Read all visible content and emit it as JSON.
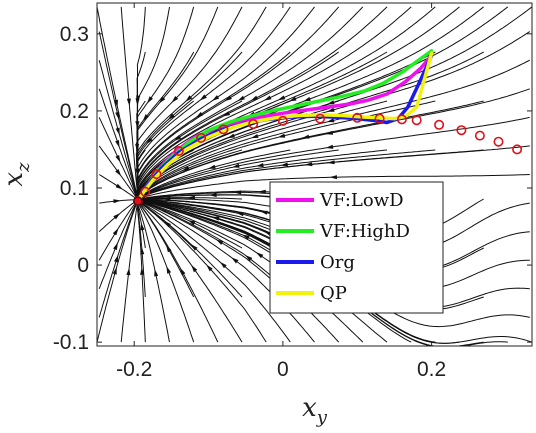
{
  "chart_data": {
    "type": "line",
    "subtype": "phase-portrait-with-trajectories",
    "xlabel": {
      "base": "x",
      "sub": "y"
    },
    "ylabel": {
      "base": "x",
      "sub": "z"
    },
    "xlim": [
      -0.25,
      0.335
    ],
    "ylim": [
      -0.105,
      0.34
    ],
    "xticks": [
      {
        "value": -0.2,
        "label": "-0.2"
      },
      {
        "value": 0,
        "label": "0"
      },
      {
        "value": 0.2,
        "label": "0.2"
      }
    ],
    "yticks": [
      {
        "value": -0.1,
        "label": "-0.1"
      },
      {
        "value": 0,
        "label": "0"
      },
      {
        "value": 0.1,
        "label": "0.1"
      },
      {
        "value": 0.2,
        "label": "0.2"
      },
      {
        "value": 0.3,
        "label": "0.3"
      }
    ],
    "legend_position": "lower-right",
    "grid": false,
    "attractor": {
      "x": -0.195,
      "y": 0.083
    },
    "reference_markers": {
      "color": "#e0101a",
      "x": [
        -0.195,
        -0.185,
        -0.17,
        -0.14,
        -0.11,
        -0.08,
        -0.04,
        0.0,
        0.05,
        0.1,
        0.13,
        0.16,
        0.18,
        0.21,
        0.24,
        0.265,
        0.29,
        0.315
      ],
      "y": [
        0.083,
        0.095,
        0.118,
        0.148,
        0.165,
        0.176,
        0.183,
        0.187,
        0.19,
        0.191,
        0.19,
        0.189,
        0.188,
        0.182,
        0.175,
        0.168,
        0.16,
        0.15
      ]
    },
    "series": [
      {
        "name": "VF:LowD",
        "color": "#ee10ee",
        "x": [
          0.2,
          0.185,
          0.165,
          0.14,
          0.115,
          0.09,
          0.06,
          0.03,
          0.0,
          -0.03,
          -0.06,
          -0.09,
          -0.12,
          -0.145,
          -0.165,
          -0.18,
          -0.19,
          -0.195
        ],
        "y": [
          0.272,
          0.255,
          0.238,
          0.222,
          0.214,
          0.209,
          0.205,
          0.201,
          0.197,
          0.192,
          0.186,
          0.178,
          0.165,
          0.147,
          0.127,
          0.107,
          0.093,
          0.083
        ]
      },
      {
        "name": "VF:HighD",
        "color": "#22ee22",
        "x": [
          0.2,
          0.18,
          0.16,
          0.135,
          0.11,
          0.08,
          0.05,
          0.02,
          -0.01,
          -0.04,
          -0.07,
          -0.1,
          -0.125,
          -0.15,
          -0.17,
          -0.183,
          -0.191,
          -0.195
        ],
        "y": [
          0.278,
          0.264,
          0.25,
          0.236,
          0.226,
          0.219,
          0.213,
          0.207,
          0.201,
          0.194,
          0.186,
          0.175,
          0.16,
          0.14,
          0.12,
          0.102,
          0.09,
          0.083
        ]
      },
      {
        "name": "Org",
        "color": "#1a1aee",
        "x": [
          0.2,
          0.185,
          0.168,
          0.155,
          0.14,
          0.12,
          0.1,
          0.07,
          0.04,
          0.01,
          -0.02,
          -0.05,
          -0.08,
          -0.11,
          -0.14,
          -0.163,
          -0.18,
          -0.19,
          -0.195
        ],
        "y": [
          0.272,
          0.24,
          0.205,
          0.19,
          0.185,
          0.188,
          0.19,
          0.192,
          0.193,
          0.192,
          0.189,
          0.184,
          0.176,
          0.164,
          0.146,
          0.126,
          0.106,
          0.092,
          0.083
        ]
      },
      {
        "name": "QP",
        "color": "#f2f210",
        "x": [
          0.2,
          0.19,
          0.18,
          0.165,
          0.15,
          0.13,
          0.11,
          0.08,
          0.05,
          0.02,
          -0.01,
          -0.04,
          -0.07,
          -0.1,
          -0.13,
          -0.155,
          -0.175,
          -0.187,
          -0.195
        ],
        "y": [
          0.275,
          0.24,
          0.205,
          0.193,
          0.19,
          0.191,
          0.192,
          0.194,
          0.195,
          0.194,
          0.191,
          0.186,
          0.178,
          0.166,
          0.15,
          0.13,
          0.11,
          0.095,
          0.083
        ]
      }
    ]
  }
}
